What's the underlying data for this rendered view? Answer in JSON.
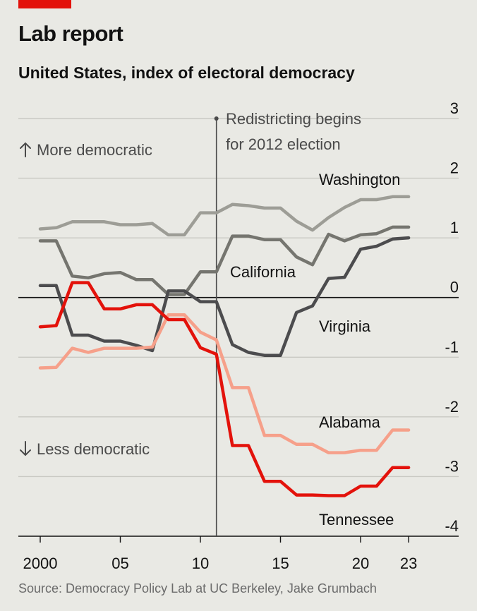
{
  "title": "Lab report",
  "subtitle": "United States, index of electoral democracy",
  "source": "Source: Democracy Policy Lab at UC Berkeley, Jake Grumbach",
  "annotations": {
    "more": "More democratic",
    "less": "Less democratic",
    "event_line1": "Redistricting begins",
    "event_line2": "for 2012 election"
  },
  "chart_data": {
    "type": "line",
    "x": [
      2000,
      2001,
      2002,
      2003,
      2004,
      2005,
      2006,
      2007,
      2008,
      2009,
      2010,
      2011,
      2012,
      2013,
      2014,
      2015,
      2016,
      2017,
      2018,
      2019,
      2020,
      2021,
      2022,
      2023
    ],
    "x_tick_values": [
      2000,
      2005,
      2010,
      2015,
      2020,
      2023
    ],
    "x_tick_labels": [
      "2000",
      "05",
      "10",
      "15",
      "20",
      "23"
    ],
    "xlim": [
      1999,
      2026
    ],
    "y_ticks": [
      3,
      2,
      1,
      0,
      -1,
      -2,
      -3,
      -4
    ],
    "y_tick_labels": [
      "3",
      "2",
      "1",
      "0",
      "-1",
      "-2",
      "-3",
      "-4"
    ],
    "ylim": [
      -4,
      3
    ],
    "event_x": 2011,
    "series": [
      {
        "name": "Washington",
        "color": "#9d9d96",
        "values": [
          1.15,
          1.17,
          1.27,
          1.27,
          1.27,
          1.22,
          1.22,
          1.24,
          1.05,
          1.05,
          1.42,
          1.42,
          1.56,
          1.54,
          1.5,
          1.5,
          1.28,
          1.13,
          1.34,
          1.51,
          1.64,
          1.64,
          1.69,
          1.69
        ]
      },
      {
        "name": "California",
        "color": "#75756f",
        "values": [
          0.95,
          0.95,
          0.36,
          0.33,
          0.4,
          0.42,
          0.3,
          0.3,
          0.05,
          0.05,
          0.43,
          0.43,
          1.03,
          1.03,
          0.97,
          0.97,
          0.68,
          0.55,
          1.06,
          0.95,
          1.05,
          1.07,
          1.18,
          1.18
        ]
      },
      {
        "name": "Virginia",
        "color": "#4c4c4e",
        "values": [
          0.2,
          0.2,
          -0.63,
          -0.63,
          -0.73,
          -0.73,
          -0.8,
          -0.89,
          0.11,
          0.11,
          -0.07,
          -0.07,
          -0.79,
          -0.92,
          -0.97,
          -0.97,
          -0.25,
          -0.14,
          0.32,
          0.34,
          0.81,
          0.86,
          0.98,
          1.0
        ]
      },
      {
        "name": "Alabama",
        "color": "#f6a08a",
        "values": [
          -1.18,
          -1.17,
          -0.85,
          -0.92,
          -0.85,
          -0.85,
          -0.85,
          -0.83,
          -0.29,
          -0.29,
          -0.58,
          -0.71,
          -1.51,
          -1.51,
          -2.31,
          -2.31,
          -2.46,
          -2.46,
          -2.6,
          -2.6,
          -2.56,
          -2.56,
          -2.22,
          -2.22
        ]
      },
      {
        "name": "Tennessee",
        "color": "#e3120b",
        "values": [
          -0.49,
          -0.47,
          0.25,
          0.25,
          -0.19,
          -0.19,
          -0.12,
          -0.12,
          -0.37,
          -0.37,
          -0.84,
          -0.95,
          -2.48,
          -2.48,
          -3.08,
          -3.08,
          -3.31,
          -3.31,
          -3.32,
          -3.32,
          -3.16,
          -3.16,
          -2.85,
          -2.85
        ]
      }
    ],
    "series_labels": {
      "Washington": "Washington",
      "California": "California",
      "Virginia": "Virginia",
      "Alabama": "Alabama",
      "Tennessee": "Tennessee"
    },
    "legend": "inline-labels",
    "grid": "horizontal"
  }
}
